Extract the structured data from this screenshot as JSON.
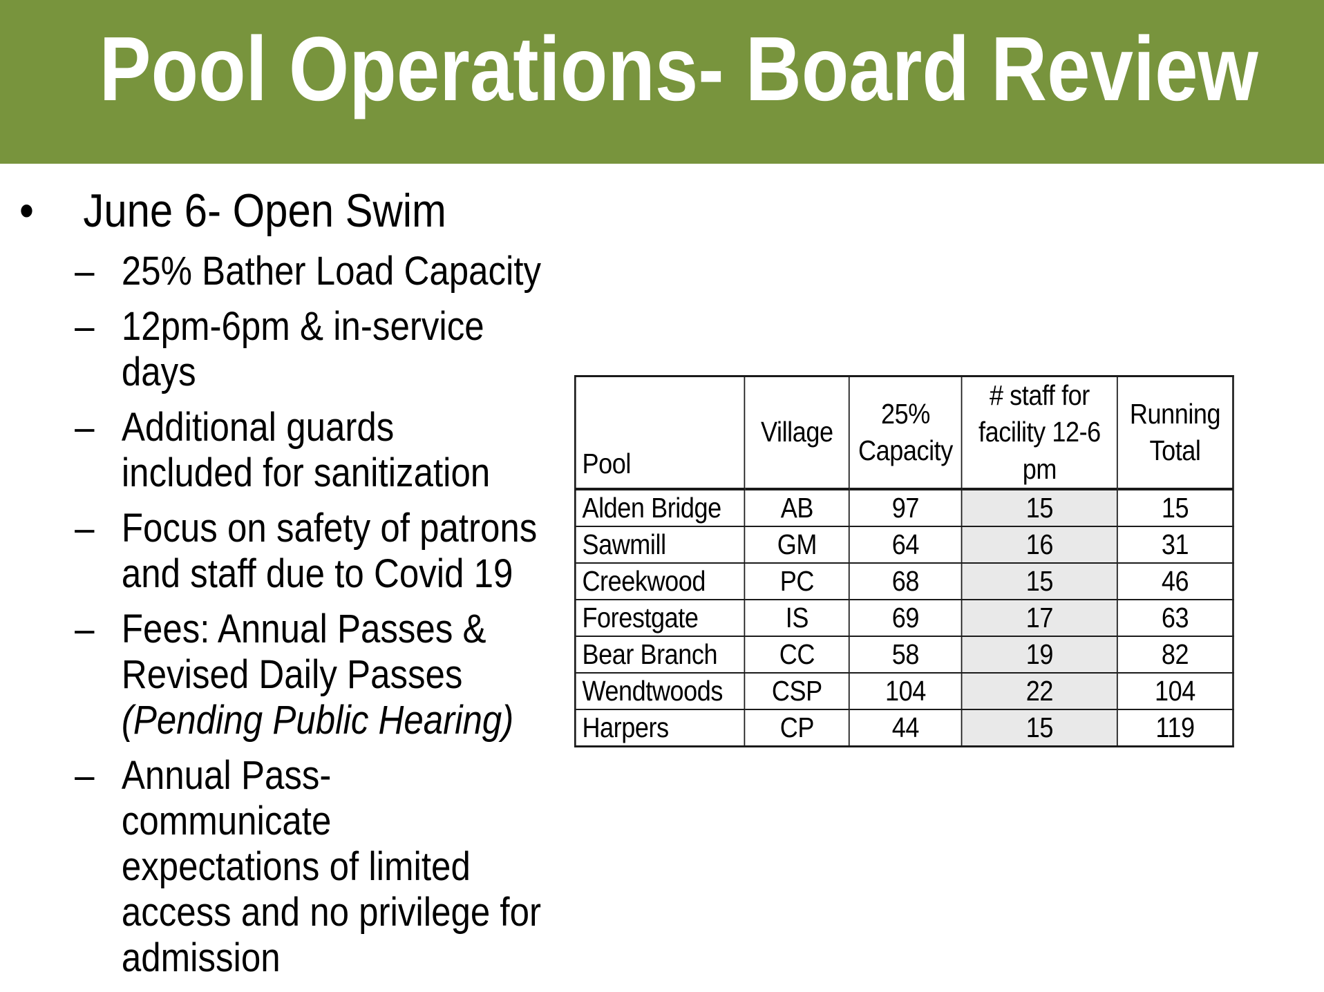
{
  "slide": {
    "title": "Pool Operations- Board Review",
    "banner_color": "#78943D",
    "background_color": "#ffffff",
    "text_color": "#000000"
  },
  "bullets": {
    "main": {
      "marker": "•",
      "text": "June 6- Open Swim"
    },
    "sub_marker": "–",
    "items": [
      {
        "text": "25% Bather Load Capacity"
      },
      {
        "text": "12pm-6pm & in-service\ndays"
      },
      {
        "text": "Additional guards\nincluded for sanitization"
      },
      {
        "text": "Focus on safety of patrons\nand staff due to Covid 19"
      },
      {
        "text": "Fees: Annual Passes &\nRevised Daily Passes\n",
        "italic_text": "(Pending Public Hearing)"
      },
      {
        "text": "Annual Pass-\ncommunicate\nexpectations of limited\naccess and no privilege for\nadmission"
      }
    ]
  },
  "table": {
    "headers": [
      "Pool",
      "Village",
      "25%\nCapacity",
      "# staff for\nfacility 12-6 pm",
      "Running\nTotal"
    ],
    "rows": [
      [
        "Alden Bridge",
        "AB",
        "97",
        "15",
        "15"
      ],
      [
        "Sawmill",
        "GM",
        "64",
        "16",
        "31"
      ],
      [
        "Creekwood",
        "PC",
        "68",
        "15",
        "46"
      ],
      [
        "Forestgate",
        "IS",
        "69",
        "17",
        "63"
      ],
      [
        "Bear Branch",
        "CC",
        "58",
        "19",
        "82"
      ],
      [
        "Wendtwoods",
        "CSP",
        "104",
        "22",
        "104"
      ],
      [
        "Harpers",
        "CP",
        "44",
        "15",
        "119"
      ]
    ],
    "highlight_color": "#E9E9E9",
    "border_color": "#1a1a1a"
  }
}
